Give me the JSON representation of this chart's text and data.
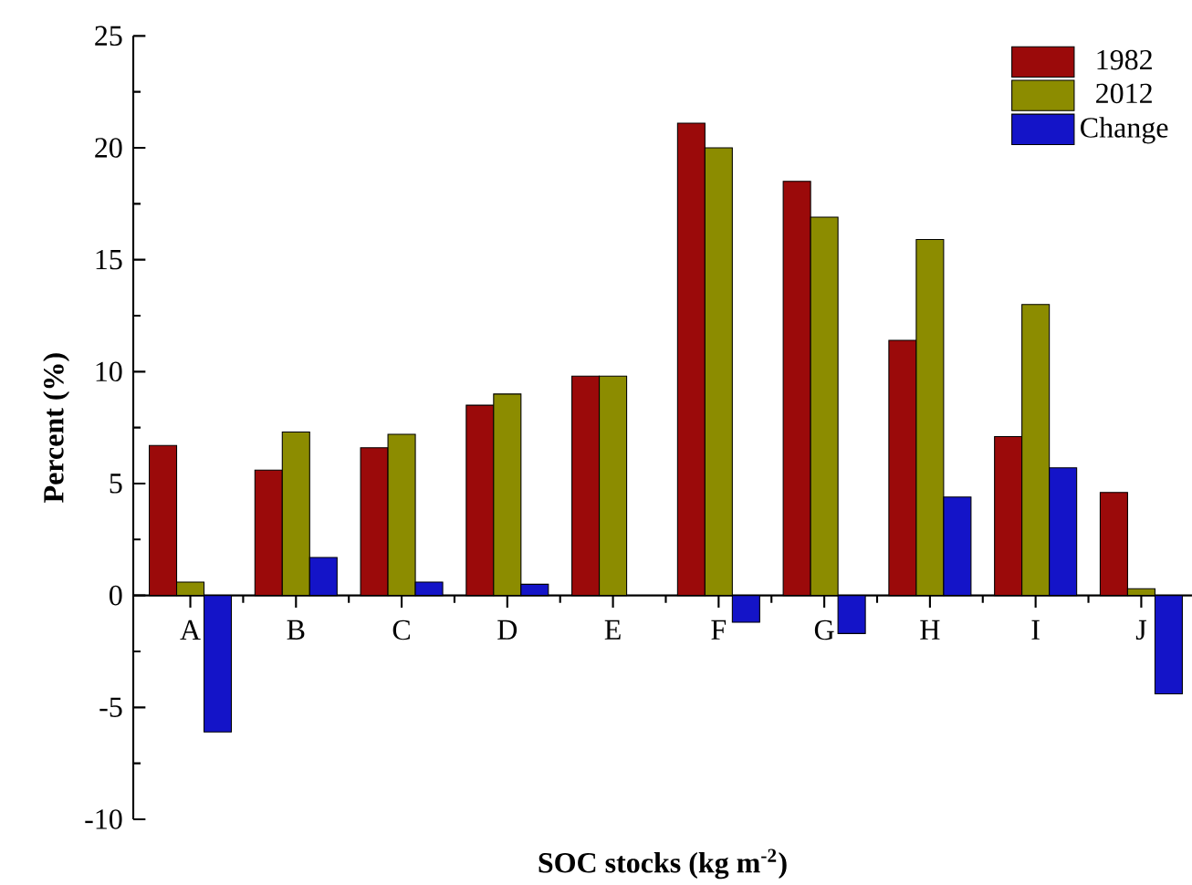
{
  "chart_data": {
    "type": "bar",
    "xlabel": "SOC stocks (kg m$^{-2}$)",
    "ylabel": "Percent (%)",
    "categories": [
      "A",
      "B",
      "C",
      "D",
      "E",
      "F",
      "G",
      "H",
      "I",
      "J"
    ],
    "series": [
      {
        "name": "1982",
        "color": "#9b0a0a",
        "values": [
          6.7,
          5.6,
          6.6,
          8.5,
          9.8,
          21.1,
          18.5,
          11.4,
          7.1,
          4.6
        ]
      },
      {
        "name": "2012",
        "color": "#8c8c00",
        "values": [
          0.6,
          7.3,
          7.2,
          9.0,
          9.8,
          20.0,
          16.9,
          15.9,
          13.0,
          0.3
        ]
      },
      {
        "name": "Change",
        "color": "#1414c8",
        "values": [
          -6.1,
          1.7,
          0.6,
          0.5,
          null,
          -1.2,
          -1.7,
          4.4,
          5.7,
          -4.4
        ]
      }
    ],
    "ylim": [
      -10,
      25
    ],
    "yticks": [
      -10,
      -5,
      0,
      5,
      10,
      15,
      20,
      25
    ],
    "legend": "top right"
  }
}
